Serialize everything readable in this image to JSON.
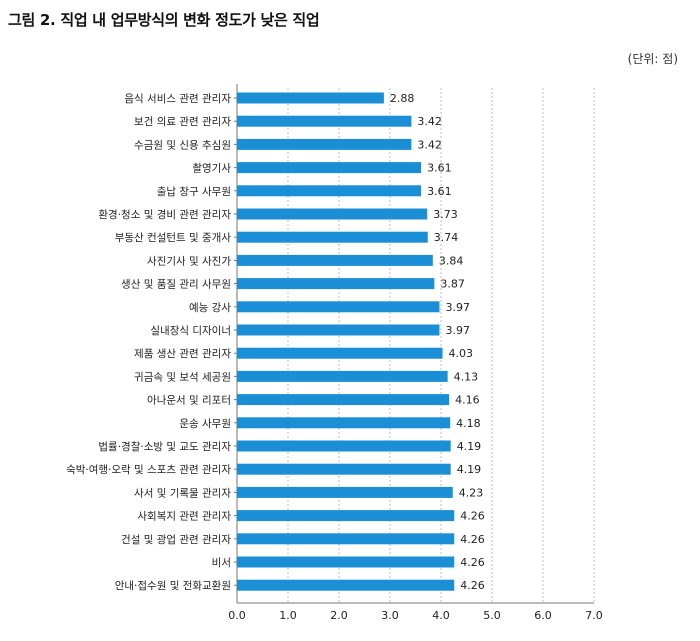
{
  "header": {
    "title": "그림 2. 직업 내 업무방식의 변화 정도가 낮은 직업",
    "unit": "(단위: 점)"
  },
  "colors": {
    "bar": "#1a8fd6",
    "grid": "#b0b0b0",
    "axis": "#777777",
    "text": "#222222"
  },
  "chart_data": {
    "type": "bar",
    "orientation": "horizontal",
    "title": "그림 2. 직업 내 업무방식의 변화 정도가 낮은 직업",
    "unit": "(단위: 점)",
    "xlim": [
      0,
      7
    ],
    "xticks": [
      "0.0",
      "1.0",
      "2.0",
      "3.0",
      "4.0",
      "5.0",
      "6.0",
      "7.0"
    ],
    "grid": "vertical dotted",
    "categories": [
      "음식 서비스 관련 관리자",
      "보건 의료 관련 관리자",
      "수금원 및 신용 추심원",
      "촬영기사",
      "출납 창구 사무원",
      "환경·청소 및 경비 관련 관리자",
      "부동산 컨설턴트 및 중개사",
      "사진기사 및 사진가",
      "생산 및 품질 관리 사무원",
      "예능 강사",
      "실내장식 디자이너",
      "제품 생산 관련 관리자",
      "귀금속 및 보석 세공원",
      "아나운서 및 리포터",
      "운송 사무원",
      "법률·경찰·소방 및 교도 관리자",
      "숙박·여행·오락 및 스포츠 관련 관리자",
      "사서 및 기록물 관리자",
      "사회복지 관련 관리자",
      "건설 및 광업 관련 관리자",
      "비서",
      "안내·접수원 및 전화교환원"
    ],
    "values": [
      2.88,
      3.42,
      3.42,
      3.61,
      3.61,
      3.73,
      3.74,
      3.84,
      3.87,
      3.97,
      3.97,
      4.03,
      4.13,
      4.16,
      4.18,
      4.19,
      4.19,
      4.23,
      4.26,
      4.26,
      4.26,
      4.26
    ],
    "value_labels": [
      "2.88",
      "3.42",
      "3.42",
      "3.61",
      "3.61",
      "3.73",
      "3.74",
      "3.84",
      "3.87",
      "3.97",
      "3.97",
      "4.03",
      "4.13",
      "4.16",
      "4.18",
      "4.19",
      "4.19",
      "4.23",
      "4.26",
      "4.26",
      "4.26",
      "4.26"
    ]
  }
}
